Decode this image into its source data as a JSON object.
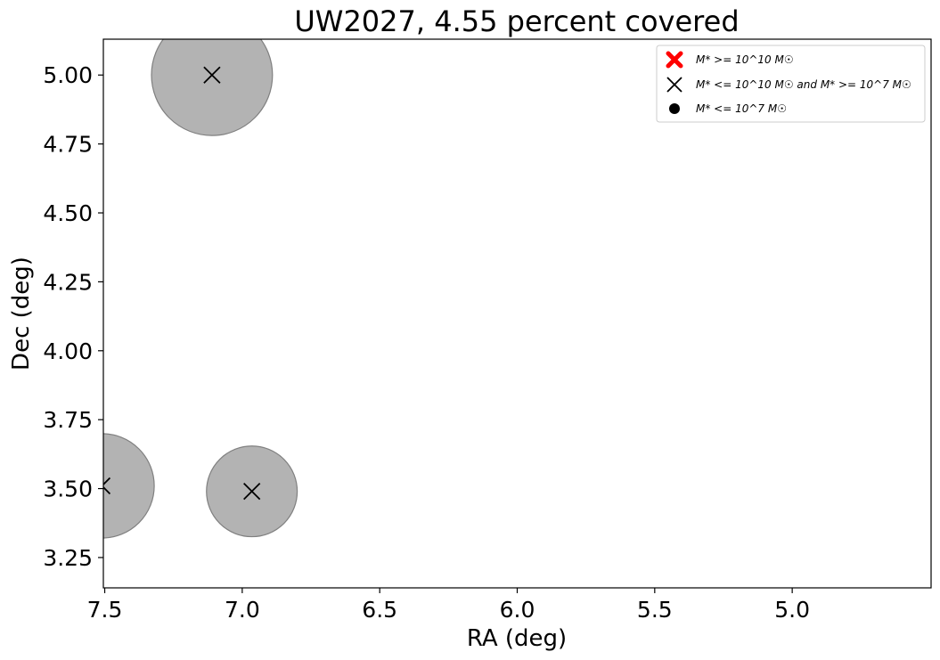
{
  "chart_data": {
    "type": "scatter",
    "title": "UW2027, 4.55 percent covered",
    "xlabel": "RA (deg)",
    "ylabel": "Dec (deg)",
    "xlim": [
      7.505,
      4.495
    ],
    "ylim": [
      3.14,
      5.13
    ],
    "x_inverted": true,
    "grid": false,
    "legend_position": "top-right",
    "xticks": [
      7.5,
      7.0,
      6.5,
      6.0,
      5.5,
      5.0
    ],
    "xtick_labels": [
      "7.5",
      "7.0",
      "6.5",
      "6.0",
      "5.5",
      "5.0"
    ],
    "yticks": [
      3.25,
      3.5,
      3.75,
      4.0,
      4.25,
      4.5,
      4.75,
      5.0
    ],
    "ytick_labels": [
      "3.25",
      "3.50",
      "3.75",
      "4.00",
      "4.25",
      "4.50",
      "4.75",
      "5.00"
    ],
    "coverage_circles": [
      {
        "ra": 7.11,
        "dec": 5.0,
        "radius_deg": 0.22
      },
      {
        "ra": 7.51,
        "dec": 3.51,
        "radius_deg": 0.19
      },
      {
        "ra": 6.965,
        "dec": 3.49,
        "radius_deg": 0.165
      }
    ],
    "galaxies": [
      {
        "ra": 7.11,
        "dec": 5.0,
        "class": "mid"
      },
      {
        "ra": 7.51,
        "dec": 3.51,
        "class": "mid"
      },
      {
        "ra": 6.965,
        "dec": 3.49,
        "class": "mid"
      }
    ],
    "legend": [
      {
        "marker": "big-x",
        "label": "M* >= 10^10 M☉",
        "color": "#ff0000"
      },
      {
        "marker": "x",
        "label": "M* <= 10^10 M☉ and M* >= 10^7 M☉",
        "color": "#000000"
      },
      {
        "marker": "dot",
        "label": "M* <= 10^7 M☉",
        "color": "#000000"
      }
    ],
    "circle_color": "#808080"
  }
}
